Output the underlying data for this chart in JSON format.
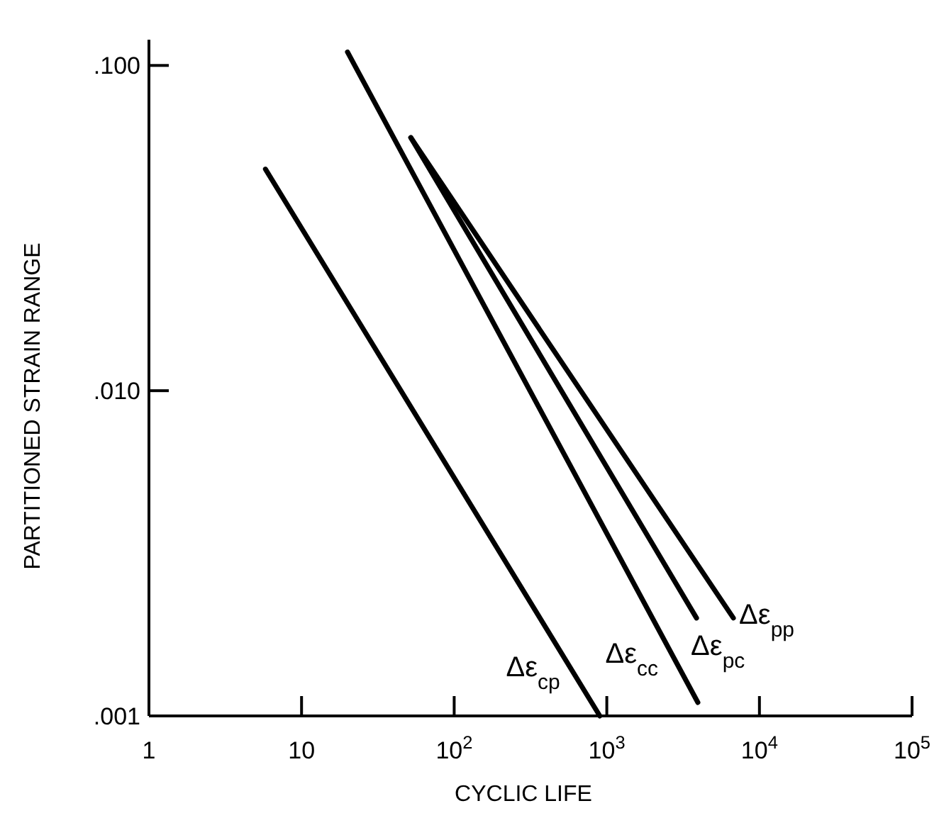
{
  "chart_data": {
    "type": "line",
    "xlabel": "CYCLIC LIFE",
    "ylabel": "PARTITIONED STRAIN RANGE",
    "log": "xy",
    "grid": false,
    "line_style": "solid",
    "xlim": [
      1,
      100000
    ],
    "xticks": [
      1,
      10,
      {
        "value": 100,
        "label": "10$^{2}$"
      },
      {
        "value": 1000,
        "label": "10$^{3}$"
      },
      {
        "value": 10000,
        "label": "10$^{4}$"
      },
      {
        "value": 100000,
        "label": "10$^{5}$"
      }
    ],
    "ylim": [
      0.001,
      0.12
    ],
    "yticks": [
      {
        "value": 0.1,
        "label": ".100"
      },
      {
        "value": 0.01,
        "label": ".010"
      },
      {
        "value": 0.001,
        "label": ".001"
      }
    ],
    "series": [
      {
        "name": "Δε$_{cp}$",
        "color": "#000000",
        "x": [
          5.8,
          900
        ],
        "values": [
          0.048,
          0.001
        ]
      },
      {
        "name": "Δε$_{cc}$",
        "color": "#000000",
        "x": [
          20,
          3950
        ],
        "values": [
          0.11,
          0.0011
        ]
      },
      {
        "name": "Δε$_{pc}$",
        "color": "#000000",
        "x": [
          52,
          3870
        ],
        "values": [
          0.06,
          0.002
        ]
      },
      {
        "name": "Δε$_{pp}$",
        "color": "#000000",
        "x": [
          52,
          6750
        ],
        "values": [
          0.06,
          0.002
        ]
      }
    ]
  }
}
